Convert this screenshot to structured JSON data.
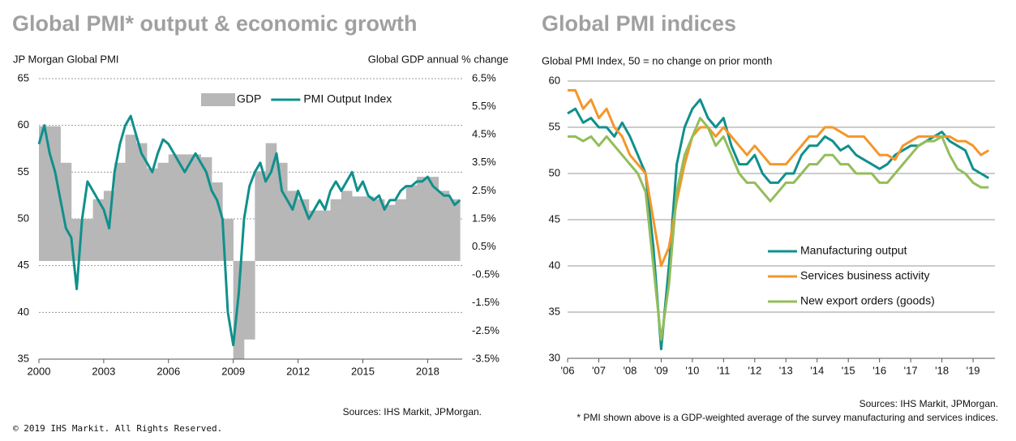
{
  "chart_data": [
    {
      "type": "combo",
      "title": "Global PMI* output & economic growth",
      "ylabel": "JP Morgan Global PMI",
      "y2label": "Global  GDP annual % change",
      "source": "Sources: IHS Markit, JPMorgan.",
      "xlim": [
        2000,
        2019.6
      ],
      "xticks": [
        2000,
        2003,
        2006,
        2009,
        2012,
        2015,
        2018
      ],
      "ylim": [
        35,
        65
      ],
      "yticks": [
        35,
        40,
        45,
        50,
        55,
        60,
        65
      ],
      "y2lim": [
        -3.5,
        6.5
      ],
      "y2ticks": [
        {
          "value": -3.5,
          "label": "-3.5%"
        },
        {
          "value": -2.5,
          "label": "-2.5%"
        },
        {
          "value": -1.5,
          "label": "-1.5%"
        },
        {
          "value": -0.5,
          "label": "-0.5%"
        },
        {
          "value": 0.5,
          "label": "0.5%"
        },
        {
          "value": 1.5,
          "label": "1.5%"
        },
        {
          "value": 2.5,
          "label": "2.5%"
        },
        {
          "value": 3.5,
          "label": "3.5%"
        },
        {
          "value": 4.5,
          "label": "4.5%"
        },
        {
          "value": 5.5,
          "label": "5.5%"
        },
        {
          "value": 6.5,
          "label": "6.5%"
        }
      ],
      "grid": true,
      "legend": "upper right",
      "series": [
        {
          "name": "GDP",
          "color": "#b7b7b7",
          "kind": "bar",
          "axis": "y2",
          "x": [
            2000,
            2000.5,
            2001,
            2001.5,
            2002,
            2002.5,
            2003,
            2003.5,
            2004,
            2004.5,
            2005,
            2005.5,
            2006,
            2006.5,
            2007,
            2007.5,
            2008,
            2008.5,
            2009,
            2009.5,
            2010,
            2010.5,
            2011,
            2011.5,
            2012,
            2012.5,
            2013,
            2013.5,
            2014,
            2014.5,
            2015,
            2015.5,
            2016,
            2016.5,
            2017,
            2017.5,
            2018,
            2018.5,
            2019
          ],
          "values": [
            4.8,
            4.8,
            3.5,
            1.5,
            1.5,
            2.2,
            2.5,
            3.5,
            4.5,
            4.2,
            3.3,
            3.5,
            3.8,
            3.8,
            3.8,
            3.7,
            2.8,
            1.5,
            -3.5,
            -2.8,
            3.2,
            4.2,
            3.5,
            2.5,
            2.2,
            1.8,
            1.8,
            2.2,
            2.5,
            2.3,
            2.3,
            2.2,
            2.0,
            2.2,
            2.7,
            3.0,
            3.0,
            2.5,
            2.2
          ]
        },
        {
          "name": "PMI Output Index",
          "color": "#10908c",
          "kind": "line",
          "x": [
            2000,
            2000.25,
            2000.5,
            2000.75,
            2001,
            2001.25,
            2001.5,
            2001.75,
            2002,
            2002.25,
            2002.5,
            2002.75,
            2003,
            2003.25,
            2003.5,
            2003.75,
            2004,
            2004.25,
            2004.5,
            2004.75,
            2005,
            2005.25,
            2005.5,
            2005.75,
            2006,
            2006.25,
            2006.5,
            2006.75,
            2007,
            2007.25,
            2007.5,
            2007.75,
            2008,
            2008.25,
            2008.5,
            2008.75,
            2009,
            2009.25,
            2009.5,
            2009.75,
            2010,
            2010.25,
            2010.5,
            2010.75,
            2011,
            2011.25,
            2011.5,
            2011.75,
            2012,
            2012.25,
            2012.5,
            2012.75,
            2013,
            2013.25,
            2013.5,
            2013.75,
            2014,
            2014.25,
            2014.5,
            2014.75,
            2015,
            2015.25,
            2015.5,
            2015.75,
            2016,
            2016.25,
            2016.5,
            2016.75,
            2017,
            2017.25,
            2017.5,
            2017.75,
            2018,
            2018.25,
            2018.5,
            2018.75,
            2019,
            2019.25,
            2019.5
          ],
          "values": [
            58,
            60,
            57,
            55,
            52,
            49,
            48,
            42.5,
            50,
            54,
            53,
            52,
            51,
            49,
            55,
            58,
            60,
            61,
            59,
            57,
            56,
            55,
            57,
            58.5,
            58,
            57,
            56,
            55,
            56,
            57,
            56,
            55,
            53,
            52,
            50,
            40,
            36.5,
            42,
            50,
            53.5,
            55,
            56,
            54,
            55,
            57,
            53,
            52,
            51,
            53,
            51.5,
            50,
            51,
            52,
            51,
            53,
            54,
            53,
            54,
            55,
            53,
            54,
            52.5,
            52,
            52.5,
            51,
            52,
            52,
            53,
            53.5,
            53.5,
            54,
            54,
            54.5,
            53.5,
            53,
            52.5,
            52.5,
            51.5,
            52
          ]
        }
      ]
    },
    {
      "type": "line",
      "title": "Global PMI indices",
      "subtitle": "Global PMI Index, 50 = no change on prior month",
      "source": "Sources: IHS Markit, JPMorgan.",
      "note": "* PMI shown above is a GDP-weighted average of the survey manufacturing and services indices.",
      "xlim": [
        2006,
        2019.7
      ],
      "xticks": [
        {
          "value": 2006,
          "label": "'06"
        },
        {
          "value": 2007,
          "label": "'07"
        },
        {
          "value": 2008,
          "label": "'08"
        },
        {
          "value": 2009,
          "label": "'09"
        },
        {
          "value": 2010,
          "label": "'10"
        },
        {
          "value": 2011,
          "label": "'11"
        },
        {
          "value": 2012,
          "label": "'12"
        },
        {
          "value": 2013,
          "label": "'13"
        },
        {
          "value": 2014,
          "label": "'14"
        },
        {
          "value": 2015,
          "label": "'15"
        },
        {
          "value": 2016,
          "label": "'16"
        },
        {
          "value": 2017,
          "label": "'17"
        },
        {
          "value": 2018,
          "label": "'18"
        },
        {
          "value": 2019,
          "label": "'19"
        }
      ],
      "ylim": [
        30,
        60
      ],
      "yticks": [
        30,
        35,
        40,
        45,
        50,
        55,
        60
      ],
      "grid": true,
      "legend": "lower right",
      "x": [
        2006,
        2006.25,
        2006.5,
        2006.75,
        2007,
        2007.25,
        2007.5,
        2007.75,
        2008,
        2008.25,
        2008.5,
        2008.75,
        2009,
        2009.25,
        2009.5,
        2009.75,
        2010,
        2010.25,
        2010.5,
        2010.75,
        2011,
        2011.25,
        2011.5,
        2011.75,
        2012,
        2012.25,
        2012.5,
        2012.75,
        2013,
        2013.25,
        2013.5,
        2013.75,
        2014,
        2014.25,
        2014.5,
        2014.75,
        2015,
        2015.25,
        2015.5,
        2015.75,
        2016,
        2016.25,
        2016.5,
        2016.75,
        2017,
        2017.25,
        2017.5,
        2017.75,
        2018,
        2018.25,
        2018.5,
        2018.75,
        2019,
        2019.25,
        2019.5
      ],
      "series": [
        {
          "name": "Manufacturing output",
          "color": "#10908c",
          "values": [
            56.5,
            57,
            55.5,
            56,
            55,
            55,
            54,
            55.5,
            54,
            52,
            50,
            42,
            31,
            40,
            51,
            55,
            57,
            58,
            56,
            55,
            56,
            53,
            51,
            51,
            52,
            50,
            49,
            49,
            50,
            50,
            52,
            53,
            53,
            54,
            53.5,
            52.5,
            53,
            52,
            51.5,
            51,
            50.5,
            51,
            52,
            52.5,
            53,
            53,
            53.5,
            54,
            54.5,
            53.5,
            53,
            52.5,
            50.5,
            50,
            49.5
          ]
        },
        {
          "name": "Services business activity",
          "color": "#f5962a",
          "values": [
            59,
            59,
            57,
            58,
            56,
            57,
            55,
            54,
            52,
            51,
            50,
            45,
            40,
            42,
            47,
            51,
            54,
            55,
            55,
            54,
            55,
            54,
            53,
            52,
            53,
            52,
            51,
            51,
            51,
            52,
            53,
            54,
            54,
            55,
            55,
            54.5,
            54,
            54,
            54,
            53,
            52,
            52,
            51.5,
            53,
            53.5,
            54,
            54,
            54,
            54,
            54,
            53.5,
            53.5,
            53,
            52,
            52.5
          ]
        },
        {
          "name": "New export orders (goods)",
          "color": "#93bd5a",
          "values": [
            54,
            54,
            53.5,
            54,
            53,
            54,
            53,
            52,
            51,
            50,
            48,
            40,
            32,
            38,
            48,
            52,
            54,
            56,
            55,
            53,
            54,
            52,
            50,
            49,
            49,
            48,
            47,
            48,
            49,
            49,
            50,
            51,
            51,
            52,
            52,
            51,
            51,
            50,
            50,
            50,
            49,
            49,
            50,
            51,
            52,
            53,
            53.5,
            53.5,
            54,
            52,
            50.5,
            50,
            49,
            48.5,
            48.5
          ]
        }
      ]
    }
  ],
  "footer": "© 2019 IHS Markit. All Rights Reserved."
}
